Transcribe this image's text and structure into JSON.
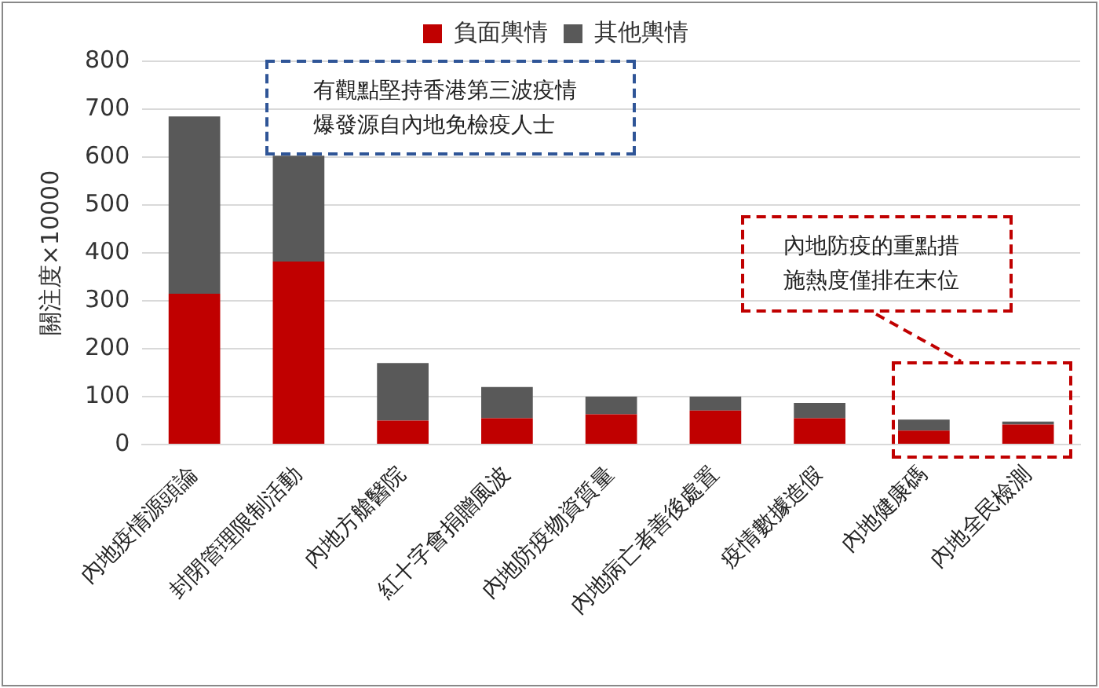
{
  "chart_data": {
    "type": "bar",
    "stacked": true,
    "ylabel": "關注度×10000",
    "categories": [
      "內地疫情源頭論",
      "封閉管理限制活動",
      "內地方艙醫院",
      "紅十字會捐贈風波",
      "內地防疫物資質量",
      "內地病亡者善後處置",
      "疫情數據造假",
      "內地健康碼",
      "內地全民檢測"
    ],
    "series": [
      {
        "name": "負面輿情",
        "color": "#c00000",
        "values": [
          315,
          382,
          50,
          55,
          63,
          71,
          55,
          29,
          42
        ]
      },
      {
        "name": "其他輿情",
        "color": "#595959",
        "values": [
          370,
          221,
          120,
          65,
          37,
          29,
          32,
          23,
          6
        ]
      }
    ],
    "ylim": [
      0,
      800
    ],
    "yticks": [
      0,
      100,
      200,
      300,
      400,
      500,
      600,
      700,
      800
    ],
    "grid": "y",
    "legend": "top",
    "annotations": [
      "有觀點堅持香港第三波疫情爆發源自內地免檢疫人士",
      "內地防疫的重點措施熱度僅排在末位"
    ]
  }
}
